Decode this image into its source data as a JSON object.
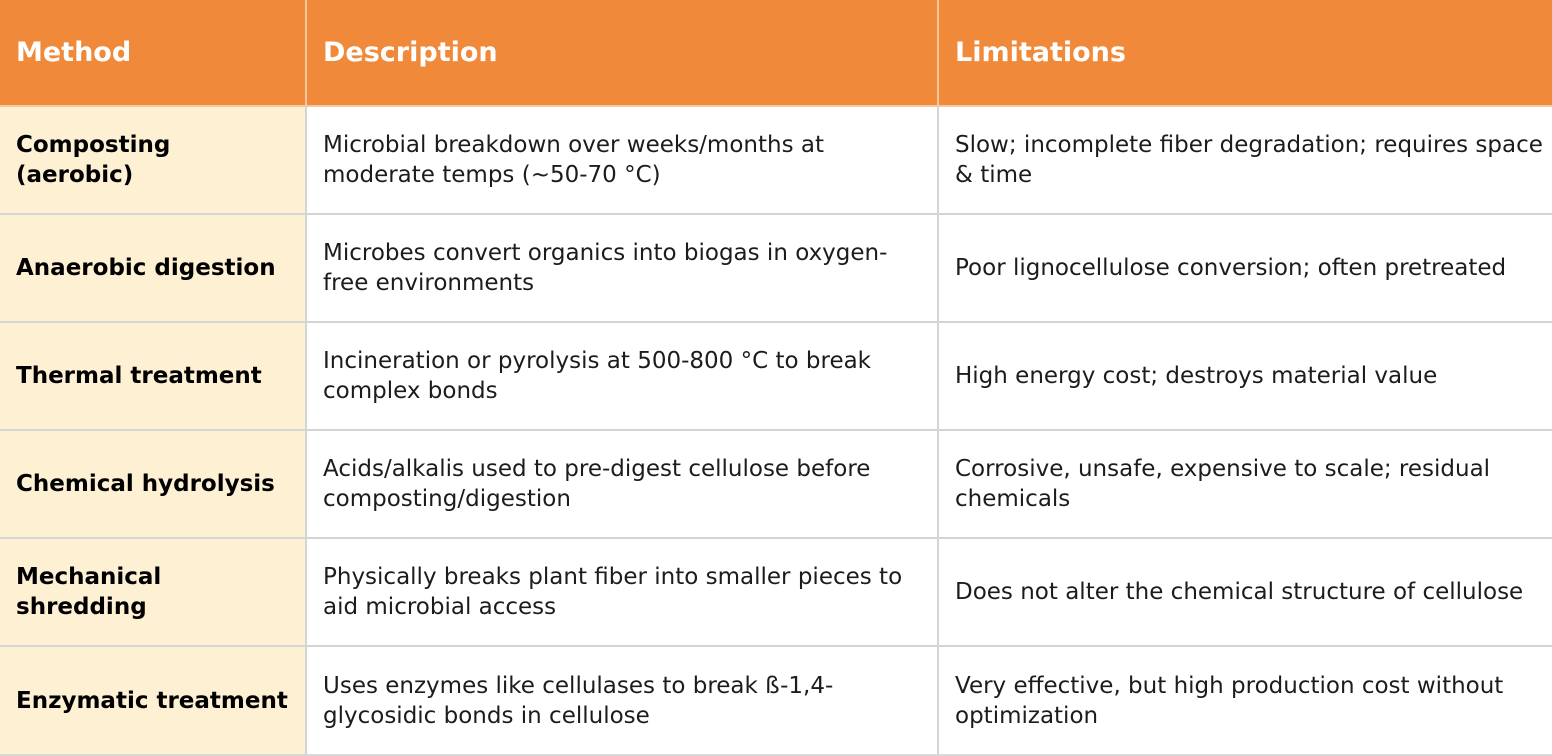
{
  "colors": {
    "header_bg": "#f08a3a",
    "header_text": "#ffffff",
    "method_col_bg": "#fdf0d3",
    "cell_bg": "#ffffff",
    "grid_line": "#d4d4d4"
  },
  "table": {
    "headers": [
      "Method",
      "Description",
      "Limitations"
    ],
    "rows": [
      {
        "method": "Composting (aerobic)",
        "description": "Microbial breakdown over weeks/months at moderate temps (~50-70 °C)",
        "limitations": "Slow; incomplete fiber degradation; requires space & time"
      },
      {
        "method": "Anaerobic digestion",
        "description": "Microbes convert organics into biogas in oxygen-free environments",
        "limitations": "Poor lignocellulose conversion; often pretreated"
      },
      {
        "method": "Thermal treatment",
        "description": "Incineration or pyrolysis at 500-800 °C to break complex bonds",
        "limitations": "High energy cost; destroys material value"
      },
      {
        "method": "Chemical hydrolysis",
        "description": "Acids/alkalis used to pre-digest cellulose before composting/digestion",
        "limitations": "Corrosive, unsafe, expensive to scale; residual chemicals"
      },
      {
        "method": "Mechanical shredding",
        "description": "Physically breaks plant fiber into smaller pieces to aid microbial access",
        "limitations": "Does not alter the chemical structure of cellulose"
      },
      {
        "method": "Enzymatic treatment",
        "description": "Uses enzymes like cellulases to break ß-1,4-glycosidic bonds in cellulose",
        "limitations": "Very effective, but high production cost without optimization"
      }
    ]
  }
}
